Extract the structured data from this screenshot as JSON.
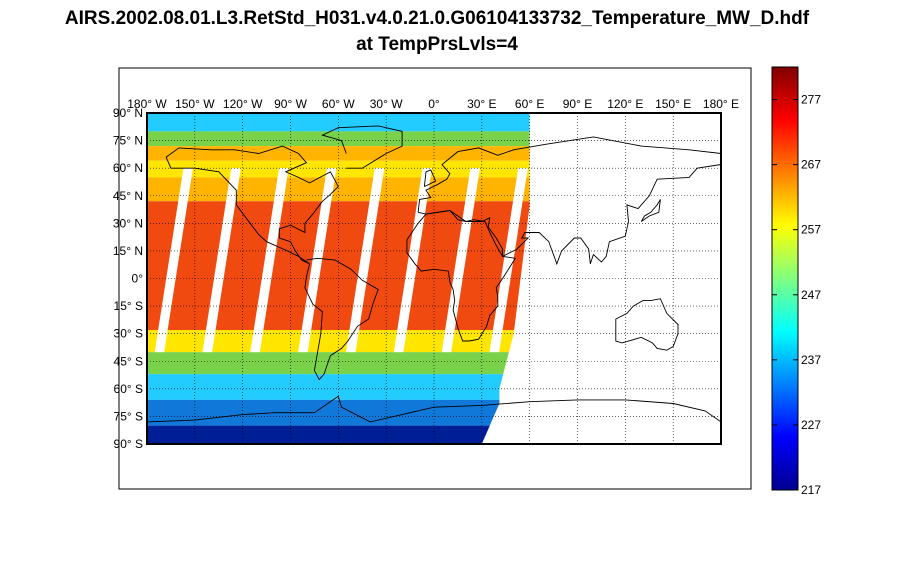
{
  "title": {
    "line1": "AIRS.2002.08.01.L3.RetStd_H031.v4.0.21.0.G06104133732_Temperature_MW_D.hdf",
    "line2": "at TempPrsLvls=4"
  },
  "map": {
    "projection": "equirectangular",
    "extent": {
      "lon": [
        -180,
        180
      ],
      "lat": [
        -90,
        90
      ]
    },
    "grid": true,
    "lon_ticks": [
      {
        "value": -180,
        "label": "180° W"
      },
      {
        "value": -150,
        "label": "150° W"
      },
      {
        "value": -120,
        "label": "120° W"
      },
      {
        "value": -90,
        "label": "90° W"
      },
      {
        "value": -60,
        "label": "60° W"
      },
      {
        "value": -30,
        "label": "30° W"
      },
      {
        "value": 0,
        "label": "0°"
      },
      {
        "value": 30,
        "label": "30° E"
      },
      {
        "value": 60,
        "label": "60° E"
      },
      {
        "value": 90,
        "label": "90° E"
      },
      {
        "value": 120,
        "label": "120° E"
      },
      {
        "value": 150,
        "label": "150° E"
      },
      {
        "value": 180,
        "label": "180° E"
      }
    ],
    "lat_ticks": [
      {
        "value": 90,
        "label": "90° N"
      },
      {
        "value": 75,
        "label": "75° N"
      },
      {
        "value": 60,
        "label": "60° N"
      },
      {
        "value": 45,
        "label": "45° N"
      },
      {
        "value": 30,
        "label": "30° N"
      },
      {
        "value": 15,
        "label": "15° N"
      },
      {
        "value": 0,
        "label": "0°"
      },
      {
        "value": -15,
        "label": "15° S"
      },
      {
        "value": -30,
        "label": "30° S"
      },
      {
        "value": -45,
        "label": "45° S"
      },
      {
        "value": -60,
        "label": "60° S"
      },
      {
        "value": -75,
        "label": "75° S"
      },
      {
        "value": -90,
        "label": "90° S"
      }
    ],
    "data_coverage_lon": [
      -180,
      60
    ],
    "swath_gaps_lon_at_equator": [
      -165,
      -135,
      -105,
      -75,
      -45,
      -15,
      15,
      45
    ]
  },
  "colorbar": {
    "min": 217,
    "max": 282,
    "tick_labels": [
      "217",
      "227",
      "237",
      "247",
      "257",
      "267",
      "277"
    ],
    "tick_values": [
      217,
      227,
      237,
      247,
      257,
      267,
      277
    ],
    "colormap": "jet"
  },
  "colors": {
    "warm": "#f04a10",
    "orange": "#ffb400",
    "yellow": "#ffe600",
    "green": "#7ad24a",
    "cyan": "#22ccff",
    "blue": "#1078d8",
    "darkblue": "#001e96",
    "coast": "#000000"
  }
}
